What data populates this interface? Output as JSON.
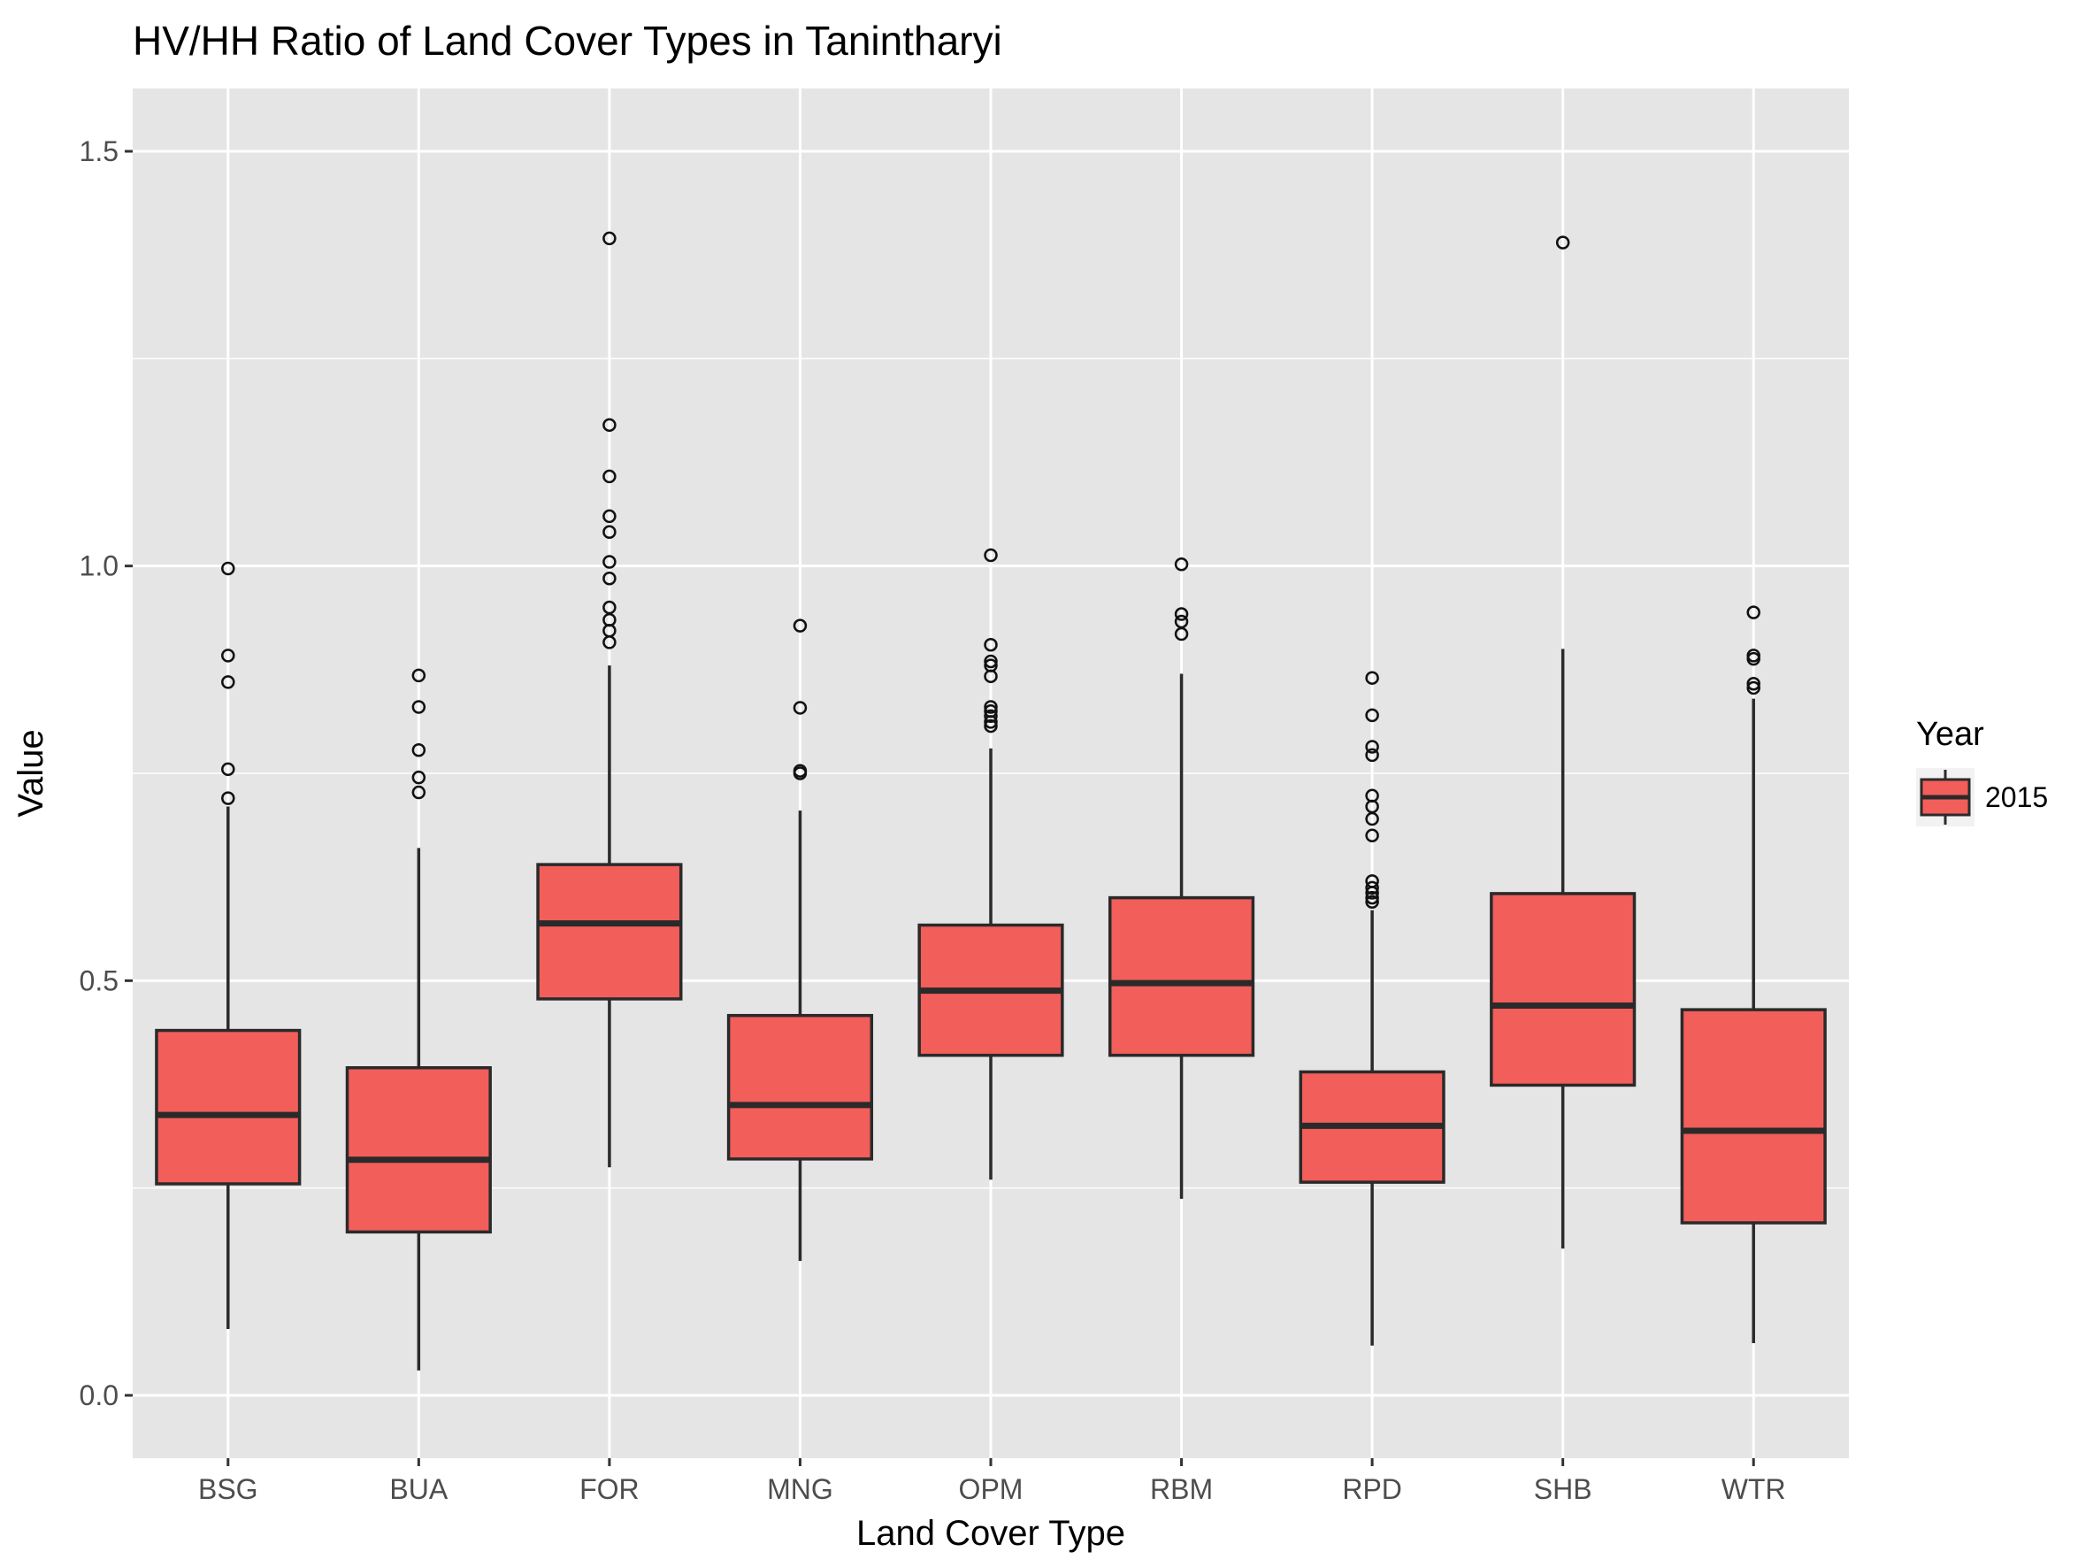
{
  "chart_data": {
    "type": "box",
    "title": "HV/HH Ratio of Land Cover Types in Tanintharyi",
    "xlabel": "Land Cover Type",
    "ylabel": "Value",
    "ylim": [
      -0.07,
      1.58
    ],
    "yticks": [
      0.0,
      0.5,
      1.0,
      1.5
    ],
    "ytick_labels": [
      "0.0",
      "0.5",
      "1.0",
      "1.5"
    ],
    "grid": true,
    "legend": {
      "title": "Year",
      "position": "right",
      "entries": [
        {
          "label": "2015",
          "color": "#F8766D"
        }
      ]
    },
    "colors": {
      "fill": "#F25E5A",
      "outline": "#2a2a2a",
      "panel": "#E5E5E5",
      "grid": "#ffffff"
    },
    "categories": [
      "BSG",
      "BUA",
      "FOR",
      "MNG",
      "OPM",
      "RBM",
      "RPD",
      "SHB",
      "WTR"
    ],
    "series": [
      {
        "name": "2015",
        "boxes": [
          {
            "category": "BSG",
            "whisker_low": 0.08,
            "q1": 0.255,
            "median": 0.338,
            "q3": 0.44,
            "whisker_high": 0.71,
            "outliers": [
              0.72,
              0.755,
              0.86,
              0.892,
              0.997
            ]
          },
          {
            "category": "BUA",
            "whisker_low": 0.03,
            "q1": 0.197,
            "median": 0.284,
            "q3": 0.395,
            "whisker_high": 0.66,
            "outliers": [
              0.727,
              0.745,
              0.778,
              0.83,
              0.868
            ]
          },
          {
            "category": "FOR",
            "whisker_low": 0.275,
            "q1": 0.478,
            "median": 0.569,
            "q3": 0.64,
            "whisker_high": 0.88,
            "outliers": [
              0.908,
              0.922,
              0.935,
              0.95,
              0.985,
              1.005,
              1.041,
              1.06,
              1.108,
              1.17,
              1.395
            ]
          },
          {
            "category": "MNG",
            "whisker_low": 0.162,
            "q1": 0.285,
            "median": 0.35,
            "q3": 0.458,
            "whisker_high": 0.705,
            "outliers": [
              0.75,
              0.753,
              0.829,
              0.928
            ]
          },
          {
            "category": "OPM",
            "whisker_low": 0.26,
            "q1": 0.41,
            "median": 0.488,
            "q3": 0.567,
            "whisker_high": 0.78,
            "outliers": [
              0.807,
              0.812,
              0.819,
              0.825,
              0.83,
              0.867,
              0.88,
              0.885,
              0.905,
              1.013
            ]
          },
          {
            "category": "RBM",
            "whisker_low": 0.237,
            "q1": 0.41,
            "median": 0.497,
            "q3": 0.6,
            "whisker_high": 0.87,
            "outliers": [
              0.918,
              0.933,
              0.942,
              1.002
            ]
          },
          {
            "category": "RPD",
            "whisker_low": 0.06,
            "q1": 0.257,
            "median": 0.325,
            "q3": 0.39,
            "whisker_high": 0.585,
            "outliers": [
              0.595,
              0.6,
              0.606,
              0.612,
              0.62,
              0.675,
              0.695,
              0.71,
              0.723,
              0.772,
              0.782,
              0.82,
              0.865
            ]
          },
          {
            "category": "SHB",
            "whisker_low": 0.177,
            "q1": 0.374,
            "median": 0.47,
            "q3": 0.605,
            "whisker_high": 0.9,
            "outliers": [
              1.39
            ]
          },
          {
            "category": "WTR",
            "whisker_low": 0.063,
            "q1": 0.208,
            "median": 0.319,
            "q3": 0.465,
            "whisker_high": 0.84,
            "outliers": [
              0.853,
              0.858,
              0.888,
              0.892,
              0.944
            ]
          }
        ]
      }
    ]
  }
}
